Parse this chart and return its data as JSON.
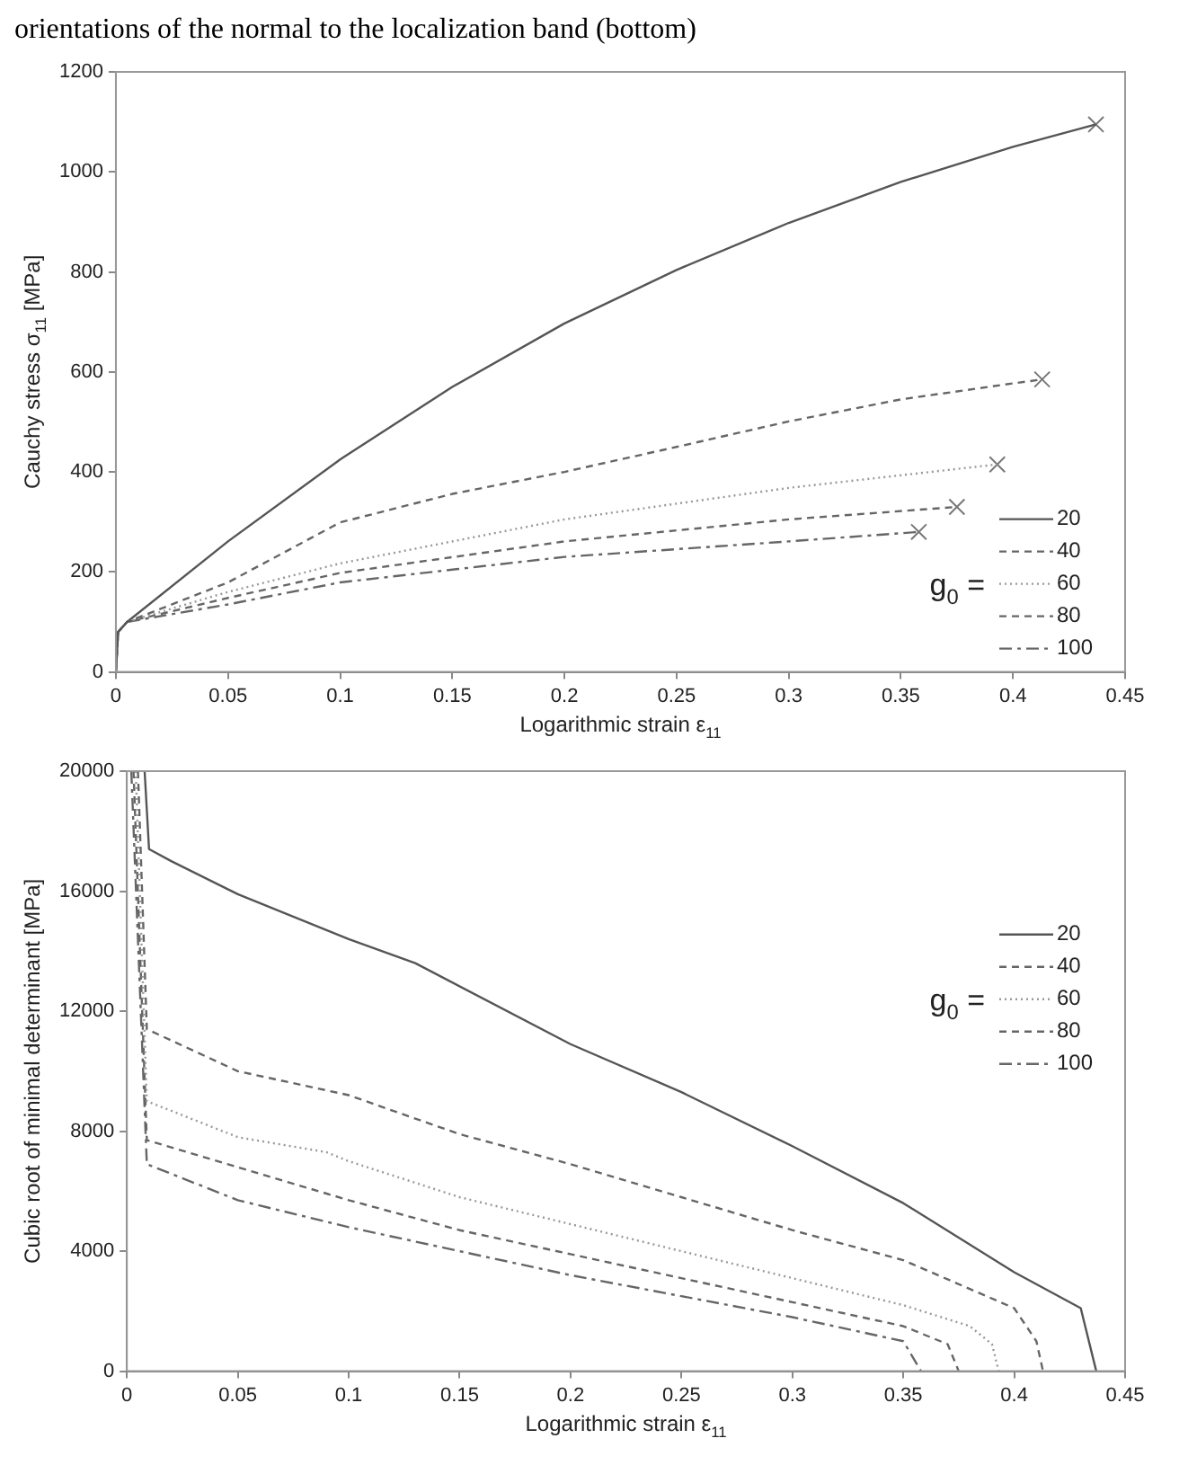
{
  "chart_data": [
    {
      "type": "line",
      "annotations": [
        "orientations of the normal to the localization band (bottom)"
      ],
      "xlabel": "Logarithmic strain ε$_{11}$",
      "ylabel": "Cauchy stress σ$_{11}$ [MPa]",
      "legend_title": "g$_{0}$ =",
      "legend": "bottom right",
      "grid": false,
      "marker": "none",
      "xlim": [
        0,
        0.45
      ],
      "xticks": [
        0,
        0.05,
        0.1,
        0.15,
        0.2,
        0.25,
        0.3,
        0.35,
        0.4,
        0.45
      ],
      "ylim": [
        0,
        1200
      ],
      "yticks": [
        0,
        200,
        400,
        600,
        800,
        1000,
        1200
      ],
      "series": [
        {
          "name": "20",
          "color": "#555555",
          "line_style": "solid",
          "x": [
            0,
            0.001,
            0.005,
            0.05,
            0.1,
            0.15,
            0.2,
            0.25,
            0.3,
            0.35,
            0.4,
            0.437
          ],
          "values": [
            0,
            80,
            100,
            261,
            425,
            570,
            697,
            804,
            898,
            980,
            1050,
            1095
          ]
        },
        {
          "name": "40",
          "color": "#666666",
          "line_style": "dashed",
          "x": [
            0,
            0.001,
            0.005,
            0.05,
            0.1,
            0.15,
            0.2,
            0.25,
            0.3,
            0.35,
            0.4,
            0.413
          ],
          "values": [
            0,
            80,
            100,
            179,
            299,
            356,
            400,
            450,
            501,
            545,
            577,
            585
          ]
        },
        {
          "name": "60",
          "color": "#999999",
          "line_style": "dotted",
          "x": [
            0,
            0.001,
            0.005,
            0.05,
            0.1,
            0.2,
            0.3,
            0.393
          ],
          "values": [
            0,
            80,
            100,
            160,
            217,
            305,
            368,
            415
          ]
        },
        {
          "name": "80",
          "color": "#666666",
          "line_style": "dashed",
          "x": [
            0,
            0.001,
            0.005,
            0.05,
            0.1,
            0.2,
            0.3,
            0.375
          ],
          "values": [
            0,
            80,
            100,
            148,
            198,
            261,
            305,
            330
          ]
        },
        {
          "name": "100",
          "color": "#666666",
          "line_style": "dashdot",
          "x": [
            0,
            0.001,
            0.005,
            0.05,
            0.1,
            0.2,
            0.3,
            0.358
          ],
          "values": [
            0,
            80,
            100,
            135,
            179,
            230,
            261,
            280
          ]
        },
        {
          "type": "scatter",
          "marker": "cross",
          "color": "#777777",
          "x": [
            0.437,
            0.413,
            0.393,
            0.375,
            0.358
          ],
          "values": [
            1095,
            585,
            415,
            330,
            280
          ]
        }
      ]
    },
    {
      "type": "line",
      "xlabel": "Logarithmic strain ε$_{11}$",
      "ylabel": "Cubic root of minimal determinant [MPa]",
      "legend_title": "g$_{0}$ =",
      "legend": "right",
      "grid": false,
      "marker": "none",
      "xlim": [
        0,
        0.45
      ],
      "xticks": [
        0,
        0.05,
        0.1,
        0.15,
        0.2,
        0.25,
        0.3,
        0.35,
        0.4,
        0.45
      ],
      "ylim": [
        0,
        20000
      ],
      "yticks": [
        0,
        4000,
        8000,
        12000,
        16000,
        20000
      ],
      "series": [
        {
          "name": "20",
          "color": "#555555",
          "line_style": "solid",
          "x": [
            0.008,
            0.01,
            0.02,
            0.05,
            0.1,
            0.13,
            0.2,
            0.25,
            0.3,
            0.35,
            0.4,
            0.43,
            0.437
          ],
          "values": [
            20000,
            17400,
            17000,
            15900,
            14400,
            13600,
            10900,
            9300,
            7500,
            5600,
            3300,
            2100,
            0
          ]
        },
        {
          "name": "40",
          "color": "#666666",
          "line_style": "dashed",
          "x": [
            0.005,
            0.009,
            0.05,
            0.1,
            0.15,
            0.2,
            0.25,
            0.3,
            0.35,
            0.4,
            0.41,
            0.413
          ],
          "values": [
            20000,
            11400,
            10000,
            9200,
            7900,
            6900,
            5800,
            4700,
            3700,
            2100,
            1000,
            0
          ]
        },
        {
          "name": "60",
          "color": "#999999",
          "line_style": "dotted",
          "x": [
            0.004,
            0.009,
            0.05,
            0.09,
            0.1,
            0.15,
            0.2,
            0.25,
            0.3,
            0.35,
            0.38,
            0.39,
            0.393
          ],
          "values": [
            20000,
            9000,
            7800,
            7300,
            7000,
            5800,
            4900,
            4000,
            3100,
            2200,
            1500,
            900,
            0
          ]
        },
        {
          "name": "80",
          "color": "#666666",
          "line_style": "dashed",
          "x": [
            0.003,
            0.009,
            0.05,
            0.1,
            0.15,
            0.2,
            0.25,
            0.3,
            0.35,
            0.37,
            0.375
          ],
          "values": [
            20000,
            7700,
            6800,
            5700,
            4700,
            3900,
            3100,
            2300,
            1500,
            900,
            0
          ]
        },
        {
          "name": "100",
          "color": "#666666",
          "line_style": "dashdot",
          "x": [
            0.002,
            0.009,
            0.05,
            0.1,
            0.15,
            0.2,
            0.25,
            0.3,
            0.35,
            0.358
          ],
          "values": [
            20000,
            6900,
            5700,
            4800,
            4000,
            3200,
            2500,
            1800,
            1000,
            0
          ]
        }
      ]
    }
  ]
}
